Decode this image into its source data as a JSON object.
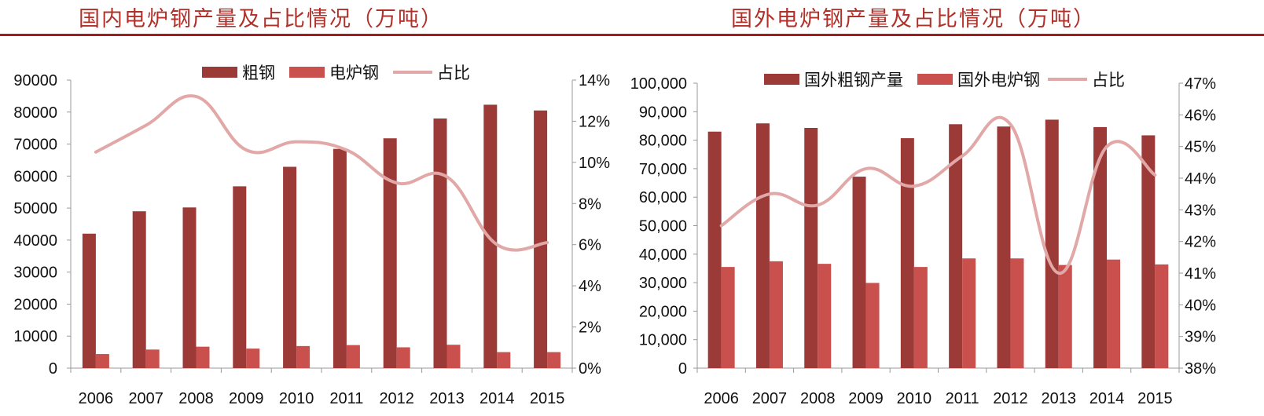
{
  "titles": {
    "left": "国内电炉钢产量及占比情况（万吨）",
    "right": "国外电炉钢产量及占比情况（万吨）"
  },
  "colors": {
    "title": "#b0302a",
    "rule": "#a01e1e",
    "bar_primary": "#9c3a38",
    "bar_secondary": "#c9504c",
    "line": "#e2a7a7",
    "axis": "#999999"
  },
  "chart_data": [
    {
      "type": "bar",
      "categories": [
        "2006",
        "2007",
        "2008",
        "2009",
        "2010",
        "2011",
        "2012",
        "2013",
        "2014",
        "2015"
      ],
      "series": [
        {
          "name": "粗钢",
          "kind": "bar",
          "axis": "left",
          "values": [
            42000,
            49000,
            50200,
            56800,
            62900,
            68500,
            71800,
            78000,
            82300,
            80500
          ]
        },
        {
          "name": "电炉钢",
          "kind": "bar",
          "axis": "left",
          "values": [
            4400,
            5800,
            6700,
            6100,
            6900,
            7200,
            6500,
            7300,
            5000,
            5000
          ]
        },
        {
          "name": "占比",
          "kind": "line",
          "axis": "right",
          "values": [
            10.5,
            11.8,
            13.2,
            10.6,
            11.0,
            10.6,
            9.0,
            9.3,
            6.0,
            6.1
          ]
        }
      ],
      "y_left": {
        "min": 0,
        "max": 90000,
        "step": 10000,
        "ticks": [
          "0",
          "10000",
          "20000",
          "30000",
          "40000",
          "50000",
          "60000",
          "70000",
          "80000",
          "90000"
        ]
      },
      "y_right": {
        "min": 0,
        "max": 14,
        "step": 2,
        "ticks": [
          "0%",
          "2%",
          "4%",
          "6%",
          "8%",
          "10%",
          "12%",
          "14%"
        ]
      },
      "legend_position": "top-center",
      "grid": false
    },
    {
      "type": "bar",
      "categories": [
        "2006",
        "2007",
        "2008",
        "2009",
        "2010",
        "2011",
        "2012",
        "2013",
        "2014",
        "2015"
      ],
      "series": [
        {
          "name": "国外粗钢产量",
          "kind": "bar",
          "axis": "left",
          "values": [
            83000,
            85900,
            84300,
            67200,
            80700,
            85600,
            84800,
            87200,
            84600,
            81700
          ]
        },
        {
          "name": "国外电炉钢",
          "kind": "bar",
          "axis": "left",
          "values": [
            35500,
            37500,
            36600,
            29900,
            35500,
            38500,
            38500,
            36200,
            38100,
            36400
          ]
        },
        {
          "name": "占比",
          "kind": "line",
          "axis": "right",
          "values": [
            42.5,
            43.5,
            43.15,
            44.3,
            43.75,
            44.7,
            45.7,
            41.0,
            45.0,
            44.1
          ]
        }
      ],
      "y_left": {
        "min": 0,
        "max": 100000,
        "step": 10000,
        "ticks": [
          "0",
          "10,000",
          "20,000",
          "30,000",
          "40,000",
          "50,000",
          "60,000",
          "70,000",
          "80,000",
          "90,000",
          "100,000"
        ]
      },
      "y_right": {
        "min": 38,
        "max": 47,
        "step": 1,
        "ticks": [
          "38%",
          "39%",
          "40%",
          "41%",
          "42%",
          "43%",
          "44%",
          "45%",
          "46%",
          "47%"
        ]
      },
      "legend_position": "top-center",
      "grid": false
    }
  ]
}
